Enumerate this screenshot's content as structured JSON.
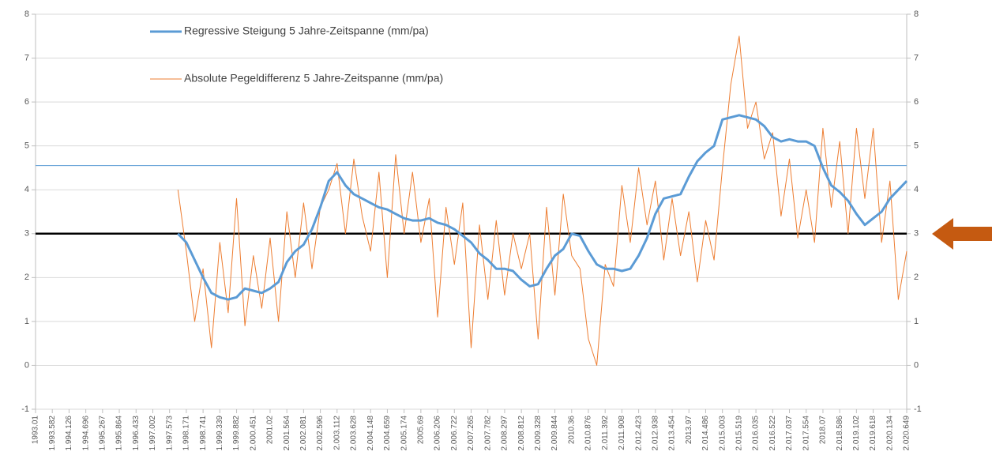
{
  "chart_data": {
    "type": "line",
    "categories": [
      "1993.01",
      null,
      "1.993.582",
      null,
      "1.994.126",
      null,
      "1.994.696",
      null,
      "1.995.267",
      null,
      "1.995.864",
      null,
      "1.996.433",
      null,
      "1.997.002",
      null,
      "1.997.573",
      null,
      "1.998.171",
      null,
      "1.998.741",
      null,
      "1.999.339",
      null,
      "1.999.882",
      null,
      "2.000.451",
      null,
      "2001.02",
      null,
      "2.001.564",
      null,
      "2.002.081",
      null,
      "2.002.596",
      null,
      "2.003.112",
      null,
      "2.003.628",
      null,
      "2.004.148",
      null,
      "2.004.659",
      null,
      "2.005.174",
      null,
      "2005.69",
      null,
      "2.006.206",
      null,
      "2.006.722",
      null,
      "2.007.265",
      null,
      "2.007.782",
      null,
      "2.008.297",
      null,
      "2.008.812",
      null,
      "2.009.328",
      null,
      "2.009.844",
      null,
      "2010.36",
      null,
      "2.010.876",
      null,
      "2.011.392",
      null,
      "2.011.908",
      null,
      "2.012.423",
      null,
      "2.012.938",
      null,
      "2.013.454",
      null,
      "2013.97",
      null,
      "2.014.486",
      null,
      "2.015.003",
      null,
      "2.015.519",
      null,
      "2.016.035",
      null,
      "2.016.522",
      null,
      "2.017.037",
      null,
      "2.017.554",
      null,
      "2018.07",
      null,
      "2.018.586",
      null,
      "2.019.102",
      null,
      "2.019.618",
      null,
      "2.020.134",
      null,
      "2.020.649"
    ],
    "series": [
      {
        "name": "Regressive Steigung 5 Jahre-Zeitspanne (mm/pa)",
        "color": "#5b9bd5",
        "values": [
          null,
          null,
          null,
          null,
          null,
          null,
          null,
          null,
          null,
          null,
          null,
          null,
          null,
          null,
          null,
          null,
          null,
          3.0,
          2.8,
          2.4,
          2.0,
          1.65,
          1.55,
          1.5,
          1.55,
          1.75,
          1.7,
          1.65,
          1.75,
          1.9,
          2.35,
          2.6,
          2.75,
          3.1,
          3.6,
          4.2,
          4.4,
          4.1,
          3.9,
          3.8,
          3.7,
          3.6,
          3.55,
          3.45,
          3.35,
          3.3,
          3.3,
          3.35,
          3.25,
          3.2,
          3.1,
          2.95,
          2.8,
          2.55,
          2.4,
          2.2,
          2.2,
          2.15,
          1.95,
          1.8,
          1.85,
          2.2,
          2.5,
          2.65,
          3.0,
          2.95,
          2.6,
          2.3,
          2.2,
          2.2,
          2.15,
          2.2,
          2.5,
          2.9,
          3.45,
          3.8,
          3.85,
          3.9,
          4.3,
          4.65,
          4.85,
          5.0,
          5.6,
          5.65,
          5.7,
          5.65,
          5.6,
          5.45,
          5.2,
          5.1,
          5.15,
          5.1,
          5.1,
          5.0,
          4.5,
          4.1,
          3.95,
          3.75,
          3.45,
          3.2,
          3.35,
          3.5,
          3.8,
          4.0,
          4.2
        ]
      },
      {
        "name": "Absolute Pegeldifferenz 5 Jahre-Zeitspanne (mm/pa)",
        "color": "#ed7d31",
        "values": [
          null,
          null,
          null,
          null,
          null,
          null,
          null,
          null,
          null,
          null,
          null,
          null,
          null,
          null,
          null,
          null,
          null,
          4.0,
          2.6,
          1.0,
          2.2,
          0.4,
          2.8,
          1.2,
          3.8,
          0.9,
          2.5,
          1.3,
          2.9,
          1.0,
          3.5,
          2.0,
          3.7,
          2.2,
          3.6,
          4.0,
          4.6,
          3.0,
          4.7,
          3.4,
          2.6,
          4.4,
          2.0,
          4.8,
          3.0,
          4.4,
          2.8,
          3.8,
          1.1,
          3.6,
          2.3,
          3.7,
          0.4,
          3.2,
          1.5,
          3.3,
          1.6,
          3.0,
          2.2,
          3.0,
          0.6,
          3.6,
          1.6,
          3.9,
          2.5,
          2.2,
          0.6,
          0.0,
          2.3,
          1.8,
          4.1,
          2.8,
          4.5,
          3.2,
          4.2,
          2.4,
          3.8,
          2.5,
          3.5,
          1.9,
          3.3,
          2.4,
          4.5,
          6.4,
          7.5,
          5.4,
          6.0,
          4.7,
          5.3,
          3.4,
          4.7,
          2.9,
          4.0,
          2.8,
          5.4,
          3.6,
          5.1,
          3.0,
          5.4,
          3.8,
          5.4,
          2.8,
          4.2,
          1.5,
          2.6
        ]
      }
    ],
    "ylim": [
      -1,
      8
    ],
    "yticks": [
      -1,
      0,
      1,
      2,
      3,
      4,
      5,
      6,
      7,
      8
    ],
    "y2lim": [
      -1,
      8
    ],
    "y2ticks": [
      -1,
      0,
      1,
      2,
      3,
      4,
      5,
      6,
      7,
      8
    ],
    "grid": true,
    "reference_lines": [
      {
        "value": 4.55,
        "color": "#5b9bd5"
      },
      {
        "value": 3,
        "color": "#000000"
      }
    ]
  }
}
